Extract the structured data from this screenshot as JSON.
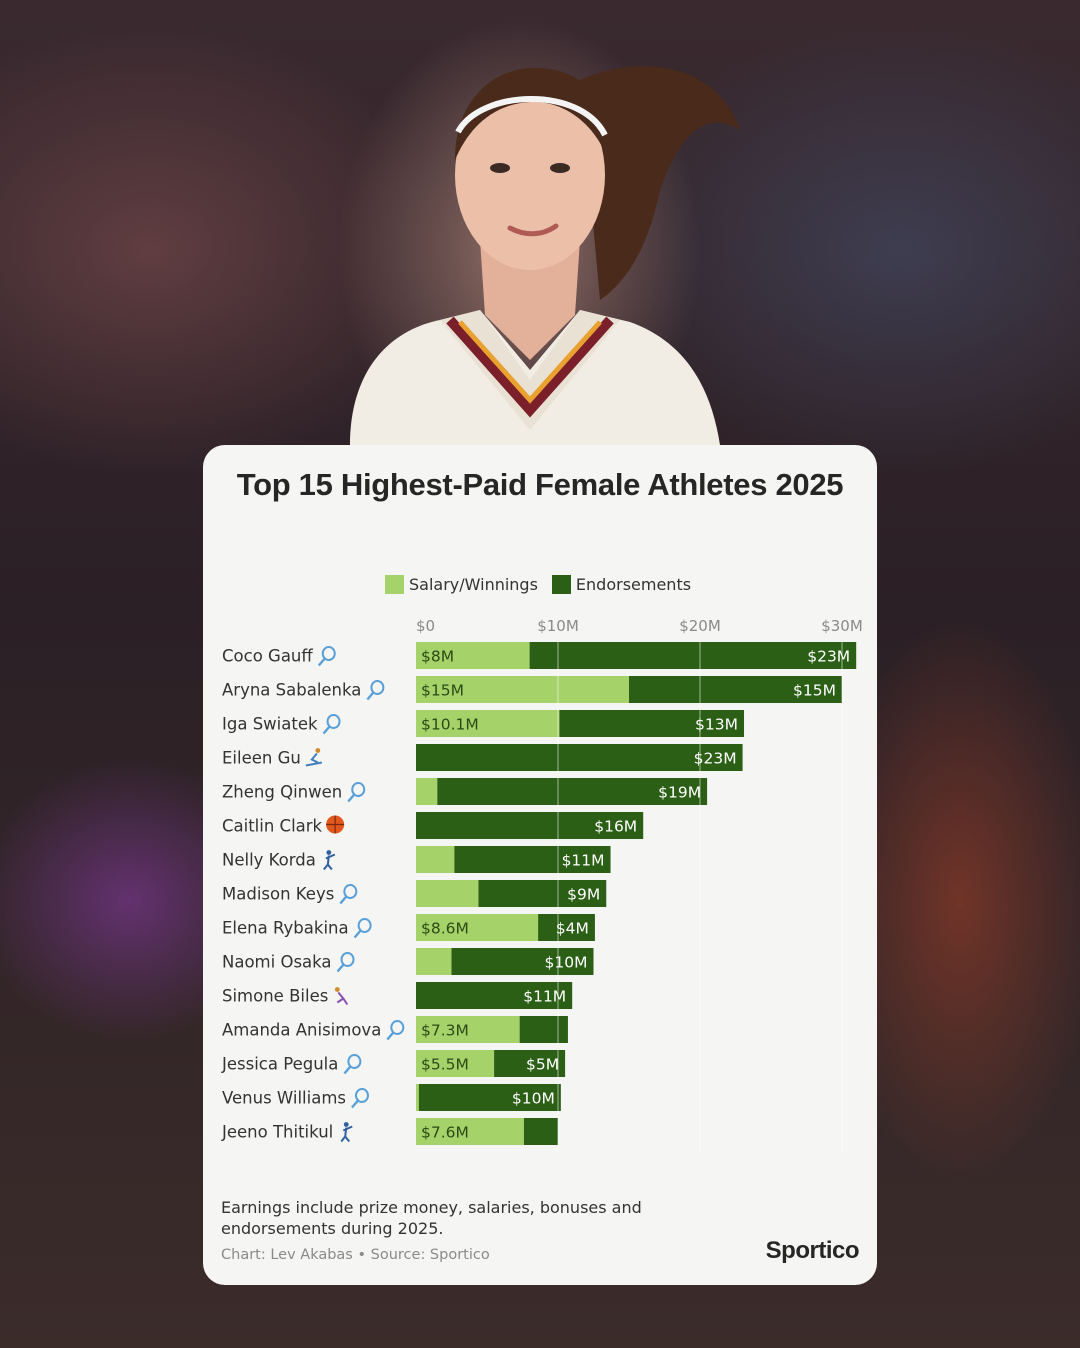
{
  "colors": {
    "salary": "#a5d36a",
    "endorsements": "#2c5f16",
    "card_bg": "#f5f5f3",
    "title": "#262626"
  },
  "title": "Top 15 Highest-Paid Female Athletes 2025",
  "legend": {
    "salary": "Salary/Winnings",
    "endorsements": "Endorsements"
  },
  "chart_data": {
    "type": "bar",
    "orientation": "horizontal",
    "stacked": true,
    "xlim": [
      0,
      31
    ],
    "x_ticks": [
      {
        "value": 0,
        "label": "$0"
      },
      {
        "value": 10,
        "label": "$10M"
      },
      {
        "value": 20,
        "label": "$20M"
      },
      {
        "value": 30,
        "label": "$30M"
      }
    ],
    "categories": [
      "Coco Gauff",
      "Aryna Sabalenka",
      "Iga Swiatek",
      "Eileen Gu",
      "Zheng Qinwen",
      "Caitlin Clark",
      "Nelly Korda",
      "Madison Keys",
      "Elena Rybakina",
      "Naomi Osaka",
      "Simone Biles",
      "Amanda Anisimova",
      "Jessica Pegula",
      "Venus Williams",
      "Jeeno Thitikul"
    ],
    "sport_icons": [
      "tennis-icon",
      "tennis-icon",
      "tennis-icon",
      "skiing-icon",
      "tennis-icon",
      "basketball-icon",
      "golf-icon",
      "tennis-icon",
      "tennis-icon",
      "tennis-icon",
      "gymnastics-icon",
      "tennis-icon",
      "tennis-icon",
      "tennis-icon",
      "golf-icon"
    ],
    "series": [
      {
        "name": "Salary/Winnings",
        "values": [
          8,
          15,
          10.1,
          0,
          1.5,
          0,
          2.7,
          4.4,
          8.6,
          2.5,
          0,
          7.3,
          5.5,
          0.2,
          7.6
        ],
        "labels": [
          "$8M",
          "$15M",
          "$10.1M",
          "",
          "",
          "",
          "",
          "",
          "$8.6M",
          "",
          "",
          "$7.3M",
          "$5.5M",
          "",
          "$7.6M"
        ]
      },
      {
        "name": "Endorsements",
        "values": [
          23,
          15,
          13,
          23,
          19,
          16,
          11,
          9,
          4,
          10,
          11,
          3.4,
          5,
          10,
          2.4
        ],
        "labels": [
          "$23M",
          "$15M",
          "$13M",
          "$23M",
          "$19M",
          "$16M",
          "$11M",
          "$9M",
          "$4M",
          "$10M",
          "$11M",
          "",
          "$5M",
          "$10M",
          ""
        ]
      }
    ]
  },
  "footer": {
    "note": "Earnings include prize money, salaries, bonuses and endorsements during 2025.",
    "credit": "Chart: Lev Akabas • Source: Sportico",
    "brand": "Sportico"
  }
}
